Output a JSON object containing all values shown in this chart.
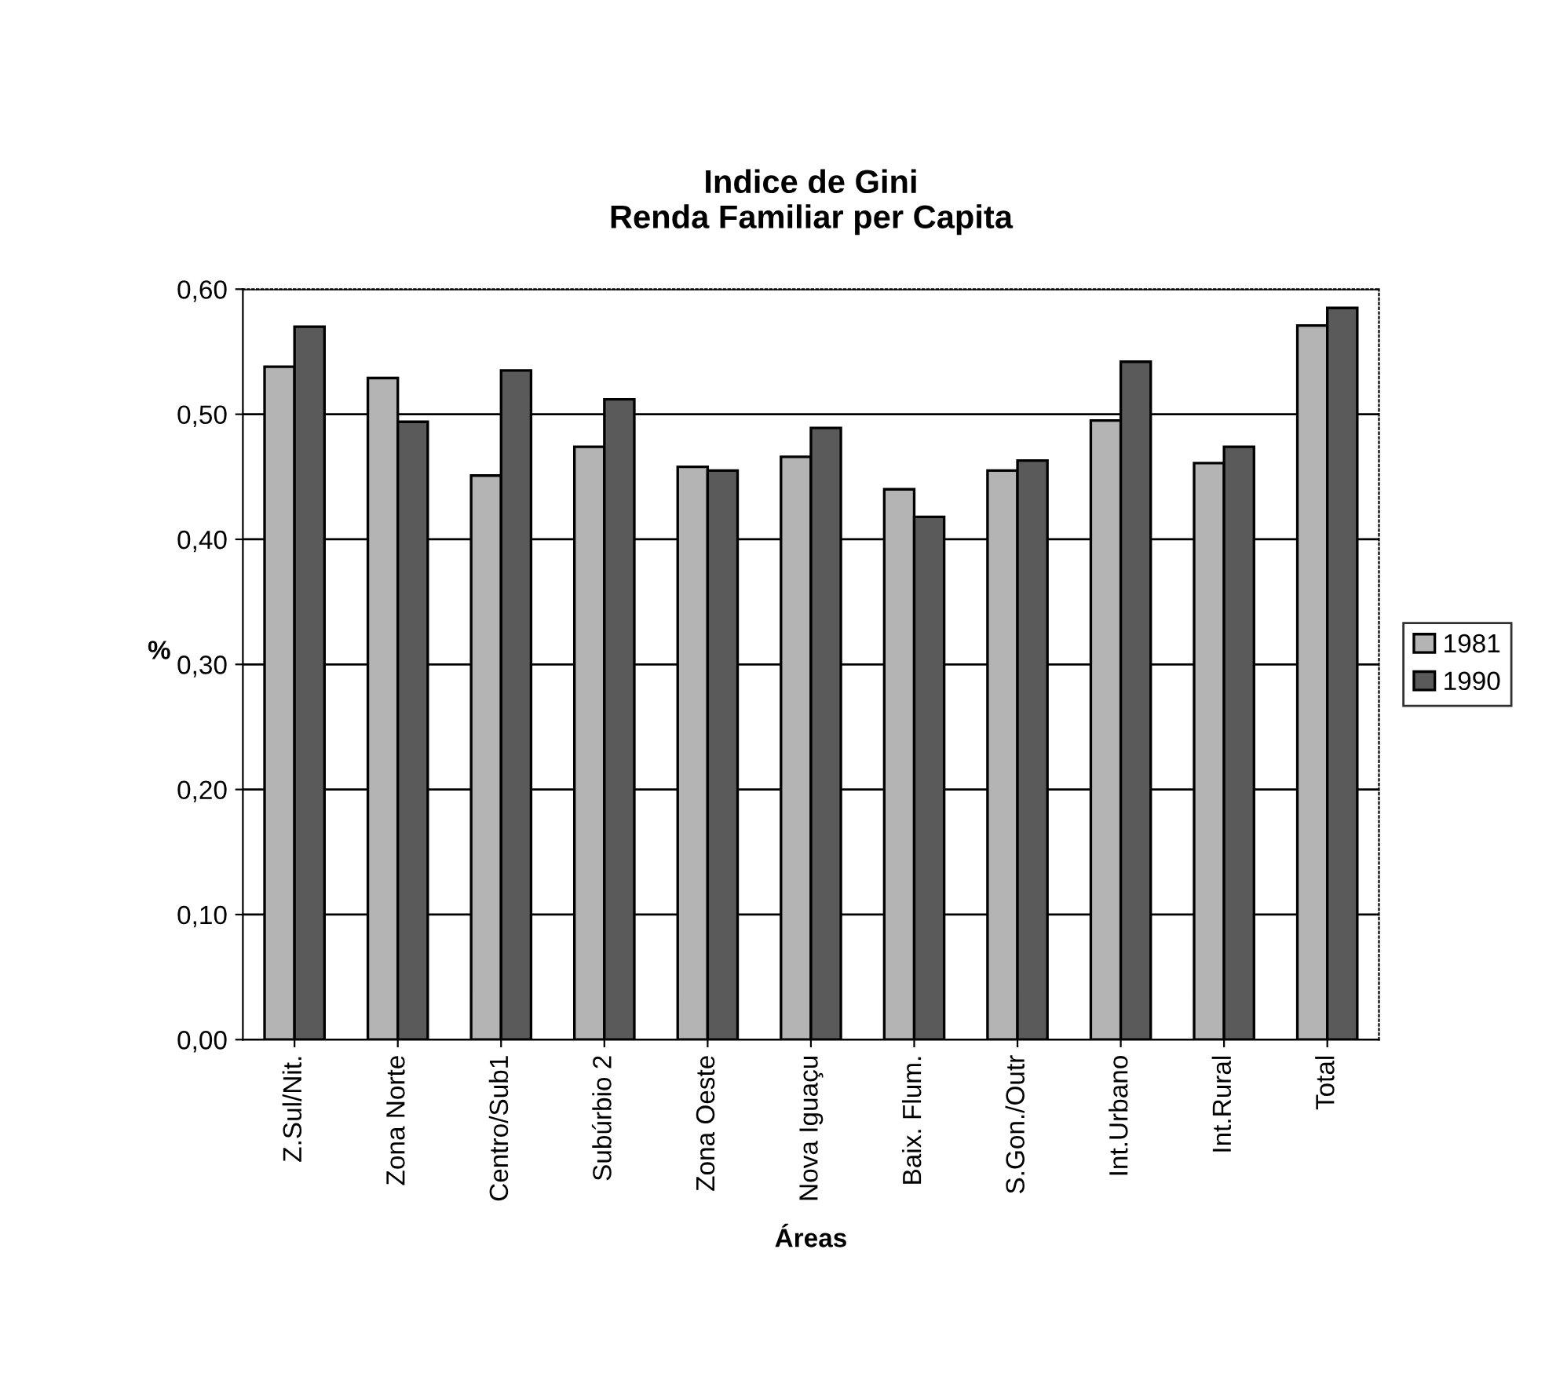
{
  "chart_data": {
    "type": "bar",
    "title": "Indice de Gini\nRenda Familiar per Capita",
    "xlabel": "Áreas",
    "ylabel": "%",
    "categories": [
      "Z.Sul/Nit.",
      "Zona Norte",
      "Centro/Sub1",
      "Subúrbio 2",
      "Zona Oeste",
      "Nova Iguaçu",
      "Baix. Flum.",
      "S.Gon./Outr",
      "Int.Urbano",
      "Int.Rural",
      "Total"
    ],
    "series": [
      {
        "name": "1981",
        "color": "#b4b4b4",
        "values": [
          0.538,
          0.529,
          0.451,
          0.474,
          0.458,
          0.466,
          0.44,
          0.455,
          0.495,
          0.461,
          0.571
        ]
      },
      {
        "name": "1990",
        "color": "#5a5a5a",
        "values": [
          0.57,
          0.494,
          0.535,
          0.512,
          0.455,
          0.489,
          0.418,
          0.463,
          0.542,
          0.474,
          0.585
        ]
      }
    ],
    "ylim": [
      0,
      0.6
    ],
    "yticks": [
      {
        "value": 0,
        "label": "0,00"
      },
      {
        "value": 0.1,
        "label": "0,10"
      },
      {
        "value": 0.2,
        "label": "0,20"
      },
      {
        "value": 0.3,
        "label": "0,30"
      },
      {
        "value": 0.4,
        "label": "0,40"
      },
      {
        "value": 0.5,
        "label": "0,50"
      },
      {
        "value": 0.6,
        "label": "0,60"
      }
    ],
    "grid": "y",
    "legend": "right"
  }
}
